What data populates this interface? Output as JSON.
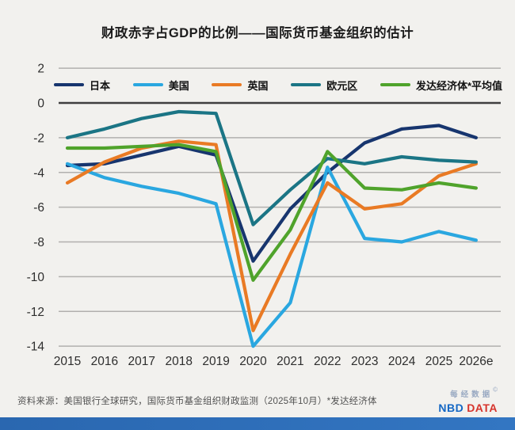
{
  "title": "财政赤字占GDP的比例——国际货币基金组织的估计",
  "footer": {
    "source": "资料来源：美国银行全球研究，国际货币基金组织财政监测（2025年10月）*发达经济体"
  },
  "logo": {
    "cn": "每经数据",
    "copyright": "©",
    "nbd": "NBD",
    "data_word": "DATA"
  },
  "chart_data": {
    "type": "line",
    "title": "财政赤字占GDP的比例——国际货币基金组织的估计",
    "x": [
      "2015",
      "2016",
      "2017",
      "2018",
      "2019",
      "2020",
      "2021",
      "2022",
      "2023",
      "2024",
      "2025",
      "2026e"
    ],
    "ylim": [
      -14,
      2
    ],
    "ytick_step": 2,
    "grid": true,
    "legend_position": "top",
    "colors": {
      "gridline": "#b1b0ae",
      "zero_line": "#3f3f3f",
      "tick_text": "#2e2e2e"
    },
    "series": [
      {
        "name": "日本",
        "key": "japan",
        "color": "#17356e",
        "values": [
          -3.6,
          -3.5,
          -3.0,
          -2.5,
          -3.0,
          -9.1,
          -6.1,
          -4.0,
          -2.3,
          -1.5,
          -1.3,
          -2.0
        ]
      },
      {
        "name": "美国",
        "key": "usa",
        "color": "#2aa7e0",
        "values": [
          -3.5,
          -4.3,
          -4.8,
          -5.2,
          -5.8,
          -14.0,
          -11.5,
          -3.7,
          -7.8,
          -8.0,
          -7.4,
          -7.9
        ]
      },
      {
        "name": "英国",
        "key": "uk",
        "color": "#e97a24",
        "values": [
          -4.6,
          -3.4,
          -2.6,
          -2.2,
          -2.4,
          -13.1,
          -8.7,
          -4.6,
          -6.1,
          -5.8,
          -4.2,
          -3.5
        ]
      },
      {
        "name": "欧元区",
        "key": "eurozone",
        "color": "#1b7585",
        "values": [
          -2.0,
          -1.5,
          -0.9,
          -0.5,
          -0.6,
          -7.0,
          -5.0,
          -3.2,
          -3.5,
          -3.1,
          -3.3,
          -3.4
        ]
      },
      {
        "name": "发达经济体*平均值",
        "key": "advanced-economies-average",
        "color": "#4fa32b",
        "values": [
          -2.6,
          -2.6,
          -2.5,
          -2.4,
          -2.8,
          -10.2,
          -7.3,
          -2.8,
          -4.9,
          -5.0,
          -4.6,
          -4.9
        ]
      }
    ]
  }
}
